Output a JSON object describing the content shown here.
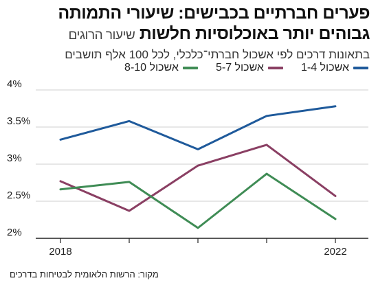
{
  "header": {
    "title_line1": "פערים חברתיים בכבישים: שיעורי התמותה",
    "title_line2_bold": "גבוהים יותר באוכלוסיות חלשות",
    "title_line2_light": "שיעור הרוגים",
    "subtitle": "בתאונות דרכים לפי אשכול חברתי־כלכלי, לכל 100 אלף תושבים"
  },
  "source": "מקור: הרשות הלאומית לבטיחות בדרכים",
  "chart_data": {
    "type": "line",
    "x": [
      2018,
      2019,
      2020,
      2021,
      2022
    ],
    "x_tick_labels": [
      "2018",
      "",
      "",
      "",
      "2022"
    ],
    "ylim": [
      2,
      4
    ],
    "y_ticks": [
      2,
      2.5,
      3,
      3.5,
      4
    ],
    "y_tick_labels": [
      "2%",
      "2.5%",
      "3%",
      "3.5%",
      "4%"
    ],
    "grid": "horizontal",
    "legend_position": "top",
    "series": [
      {
        "name": "אשכול 1-4",
        "color": "#1f5a9b",
        "values": [
          3.33,
          3.58,
          3.2,
          3.65,
          3.78
        ]
      },
      {
        "name": "אשכול 5-7",
        "color": "#8a3f63",
        "values": [
          2.77,
          2.37,
          2.98,
          3.26,
          2.57
        ]
      },
      {
        "name": "אשכול 8-10",
        "color": "#3f8c55",
        "values": [
          2.66,
          2.76,
          2.14,
          2.87,
          2.26
        ]
      }
    ]
  }
}
